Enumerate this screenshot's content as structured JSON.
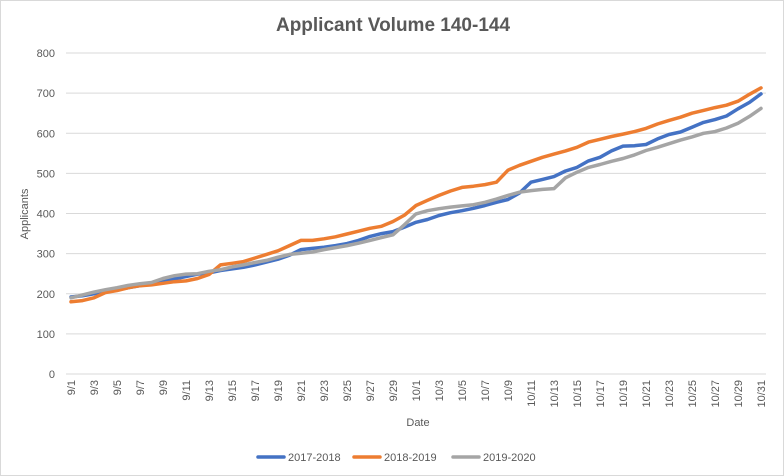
{
  "chart_data": {
    "type": "line",
    "title": "Applicant Volume 140-144",
    "xlabel": "Date",
    "ylabel": "Applicants",
    "ylim": [
      0,
      800
    ],
    "yticks": [
      0,
      100,
      200,
      300,
      400,
      500,
      600,
      700,
      800
    ],
    "grid": "horizontal",
    "legend": "bottom",
    "x": [
      "9/1",
      "9/2",
      "9/3",
      "9/4",
      "9/5",
      "9/6",
      "9/7",
      "9/8",
      "9/9",
      "9/10",
      "9/11",
      "9/12",
      "9/13",
      "9/14",
      "9/15",
      "9/16",
      "9/17",
      "9/18",
      "9/19",
      "9/20",
      "9/21",
      "9/22",
      "9/23",
      "9/24",
      "9/25",
      "9/26",
      "9/27",
      "9/28",
      "9/29",
      "9/30",
      "10/1",
      "10/2",
      "10/3",
      "10/4",
      "10/5",
      "10/6",
      "10/7",
      "10/8",
      "10/9",
      "10/10",
      "10/11",
      "10/12",
      "10/13",
      "10/14",
      "10/15",
      "10/16",
      "10/17",
      "10/18",
      "10/19",
      "10/20",
      "10/21",
      "10/22",
      "10/23",
      "10/24",
      "10/25",
      "10/26",
      "10/27",
      "10/28",
      "10/29",
      "10/30",
      "10/31"
    ],
    "x_tick_labels": [
      "9/1",
      "9/3",
      "9/5",
      "9/7",
      "9/9",
      "9/11",
      "9/13",
      "9/15",
      "9/17",
      "9/19",
      "9/21",
      "9/23",
      "9/25",
      "9/27",
      "9/29",
      "10/1",
      "10/3",
      "10/5",
      "10/7",
      "10/9",
      "10/11",
      "10/13",
      "10/15",
      "10/17",
      "10/19",
      "10/21",
      "10/23",
      "10/25",
      "10/27",
      "10/29",
      "10/31"
    ],
    "series": [
      {
        "name": "2017-2018",
        "color": "#4472c4",
        "values": [
          192,
          195,
          200,
          205,
          210,
          215,
          220,
          225,
          230,
          237,
          243,
          249,
          252,
          258,
          262,
          266,
          272,
          279,
          286,
          296,
          310,
          313,
          316,
          320,
          325,
          333,
          343,
          350,
          355,
          366,
          378,
          385,
          395,
          402,
          407,
          413,
          420,
          428,
          435,
          451,
          478,
          485,
          492,
          506,
          515,
          531,
          540,
          556,
          568,
          569,
          572,
          586,
          597,
          603,
          615,
          627,
          634,
          643,
          661,
          677,
          698
        ]
      },
      {
        "name": "2018-2019",
        "color": "#ed7d31",
        "values": [
          180,
          183,
          190,
          203,
          208,
          215,
          220,
          222,
          226,
          230,
          232,
          238,
          248,
          272,
          276,
          280,
          289,
          298,
          307,
          320,
          333,
          333,
          337,
          342,
          349,
          356,
          363,
          368,
          380,
          396,
          420,
          433,
          445,
          456,
          465,
          468,
          472,
          478,
          508,
          520,
          530,
          540,
          548,
          556,
          565,
          578,
          585,
          592,
          598,
          604,
          612,
          623,
          632,
          640,
          650,
          657,
          664,
          670,
          680,
          697,
          713
        ]
      },
      {
        "name": "2019-2020",
        "color": "#a5a5a5",
        "values": [
          190,
          197,
          204,
          210,
          215,
          221,
          225,
          228,
          238,
          245,
          249,
          250,
          256,
          260,
          267,
          272,
          278,
          283,
          291,
          298,
          301,
          304,
          310,
          315,
          320,
          326,
          333,
          340,
          347,
          372,
          399,
          407,
          412,
          416,
          419,
          422,
          428,
          436,
          445,
          453,
          457,
          460,
          462,
          489,
          503,
          515,
          522,
          530,
          537,
          546,
          557,
          565,
          574,
          583,
          591,
          600,
          604,
          613,
          625,
          642,
          662
        ]
      }
    ]
  }
}
